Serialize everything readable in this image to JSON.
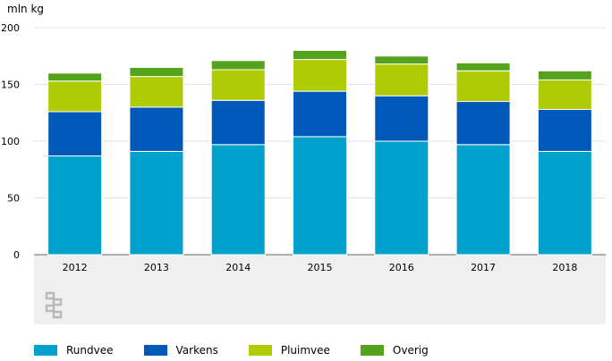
{
  "chart_data": {
    "type": "bar",
    "stacked": true,
    "unit_label": "mln kg",
    "categories": [
      "2012",
      "2013",
      "2014",
      "2015",
      "2016",
      "2017",
      "2018"
    ],
    "ylim": [
      0,
      200
    ],
    "yticks": [
      0,
      50,
      100,
      150,
      200
    ],
    "grid": true,
    "legend_position": "bottom",
    "series": [
      {
        "name": "Rundvee",
        "color": "#00a1cd",
        "values": [
          87,
          91,
          97,
          104,
          100,
          97,
          91
        ]
      },
      {
        "name": "Varkens",
        "color": "#0058b8",
        "values": [
          39,
          39,
          39,
          40,
          40,
          38,
          37
        ]
      },
      {
        "name": "Pluimvee",
        "color": "#afcb05",
        "values": [
          27,
          27,
          27,
          28,
          28,
          27,
          26
        ]
      },
      {
        "name": "Overig",
        "color": "#53a31d",
        "values": [
          7,
          8,
          8,
          8,
          7,
          7,
          8
        ]
      }
    ]
  },
  "logo": {
    "name": "cbs-logo"
  }
}
